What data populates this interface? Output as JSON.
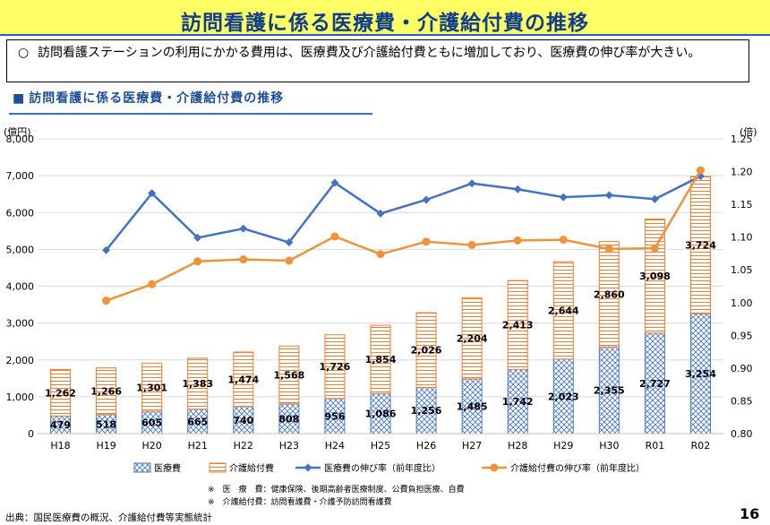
{
  "header": {
    "title": "訪問看護に係る医療費・介護給付費の推移"
  },
  "summary": {
    "bullet": "○",
    "text": "訪問看護ステーションの利用にかかる費用は、医療費及び介護給付費ともに増加しており、医療費の伸び率が大きい。"
  },
  "subtitle": {
    "marker": "■",
    "text": "訪問看護に係る医療費・介護給付費の推移"
  },
  "chart_data": {
    "type": "stacked-bar+line",
    "categories": [
      "H18",
      "H19",
      "H20",
      "H21",
      "H22",
      "H23",
      "H24",
      "H25",
      "H26",
      "H27",
      "H28",
      "H29",
      "H30",
      "R01",
      "R02"
    ],
    "series": [
      {
        "name": "医療費",
        "type": "bar",
        "values": [
          479,
          518,
          605,
          665,
          740,
          808,
          956,
          1086,
          1256,
          1485,
          1742,
          2023,
          2355,
          2727,
          3254
        ]
      },
      {
        "name": "介護給付費",
        "type": "bar",
        "values": [
          1262,
          1266,
          1301,
          1383,
          1474,
          1568,
          1726,
          1854,
          2026,
          2204,
          2413,
          2644,
          2860,
          3098,
          3724
        ]
      },
      {
        "name": "医療費の伸び率（前年度比）",
        "type": "line",
        "axis": "right",
        "values": [
          null,
          1.08,
          1.167,
          1.099,
          1.113,
          1.092,
          1.183,
          1.136,
          1.157,
          1.182,
          1.173,
          1.161,
          1.164,
          1.158,
          1.193
        ]
      },
      {
        "name": "介護給付費の伸び率（前年度比）",
        "type": "line",
        "axis": "right",
        "values": [
          null,
          1.003,
          1.028,
          1.063,
          1.066,
          1.064,
          1.101,
          1.074,
          1.093,
          1.088,
          1.095,
          1.096,
          1.082,
          1.083,
          1.202
        ]
      }
    ],
    "y_left": {
      "label": "(億円)",
      "min": 0,
      "max": 8000,
      "step": 1000,
      "ticks": [
        "0",
        "1,000",
        "2,000",
        "3,000",
        "4,000",
        "5,000",
        "6,000",
        "7,000",
        "8,000"
      ]
    },
    "y_right": {
      "label": "(倍)",
      "min": 0.8,
      "max": 1.25,
      "step": 0.05,
      "ticks": [
        "0.80",
        "0.85",
        "0.90",
        "0.95",
        "1.00",
        "1.05",
        "1.10",
        "1.15",
        "1.20",
        "1.25"
      ]
    },
    "colors": {
      "medical": "#4a78c2",
      "care": "#ed7d31",
      "medical_line": "#4472c4",
      "care_line": "#f0923a"
    },
    "medical_labels": [
      "479",
      "518",
      "605",
      "665",
      "740",
      "808",
      "956",
      "1,086",
      "1,256",
      "1,485",
      "1,742",
      "2,023",
      "2,355",
      "2,727",
      "3,254"
    ],
    "care_labels": [
      "1,262",
      "1,266",
      "1,301",
      "1,383",
      "1,474",
      "1,568",
      "1,726",
      "1,854",
      "2,026",
      "2,204",
      "2,413",
      "2,644",
      "2,860",
      "3,098",
      "3,724"
    ],
    "legend": [
      "医療費",
      "介護給付費",
      "医療費の伸び率（前年度比）",
      "介護給付費の伸び率（前年度比）"
    ]
  },
  "notes": {
    "line1_mark": "※",
    "line1_label": "医　療　費",
    "line1_text": "：健康保険、後期高齢者医療制度、公費負担医療、自費",
    "line2_mark": "※",
    "line2_label": "介護給付費",
    "line2_text": "：訪問看護費・介護予防訪問看護費"
  },
  "footer": {
    "source": "出典：国民医療費の概況、介護給付費等実態統計",
    "page": "16"
  }
}
